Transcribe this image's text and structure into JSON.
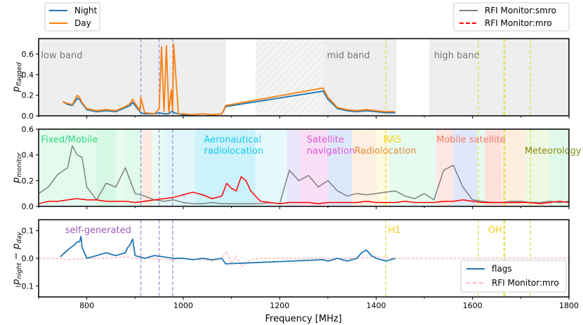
{
  "xlabel": "Frequency [MHz]",
  "xlim": [
    700,
    1800
  ],
  "xticks": [
    800,
    1000,
    1200,
    1400,
    1600,
    1800
  ],
  "vlines_purple": [
    912,
    950,
    978
  ],
  "vlines_yellow": [
    1420,
    1612,
    1665,
    1667,
    1720
  ],
  "colors": {
    "night": "#1f77b4",
    "day": "#ff7f0e",
    "smro": "#808080",
    "mro": "#ff0000",
    "diff_mro": "#ffbcbc",
    "purple": "#b39ddb",
    "yellow": "#e3e06a"
  },
  "legend_top_left": [
    {
      "label": "Night",
      "color": "#1f77b4",
      "style": "solid"
    },
    {
      "label": "Day",
      "color": "#ff7f0e",
      "style": "solid"
    }
  ],
  "legend_top_right": [
    {
      "label": "RFI Monitor:smro",
      "color": "#808080",
      "style": "solid"
    },
    {
      "label": "RFI Monitor:mro",
      "color": "#ff0000",
      "style": "dashed"
    }
  ],
  "legend_bottom": [
    {
      "label": "flags",
      "color": "#1f77b4",
      "style": "solid"
    },
    {
      "label": "RFI Monitor:mro",
      "color": "#ffbcbc",
      "style": "dashed"
    }
  ],
  "panel1": {
    "ylabel_main": "p",
    "ylabel_sub": "flagged",
    "ylim": [
      0,
      0.75
    ],
    "yticks": [
      "0.6",
      "0.4",
      "0.2",
      "0.0"
    ],
    "band_labels": [
      {
        "text": "low band",
        "x": 705
      },
      {
        "text": "mid band",
        "x": 1298
      },
      {
        "text": "high band",
        "x": 1520
      }
    ]
  },
  "panel2": {
    "ylabel_main": "p",
    "ylabel_sub": "monitor",
    "ylim": [
      0,
      0.6
    ],
    "yticks": [
      "0.6",
      "0.4",
      "0.2",
      "0.0"
    ],
    "allocation_labels": [
      {
        "text": "Fixed/Mobile",
        "x": 705,
        "line": 0,
        "color": "#2fd97a"
      },
      {
        "text": "Aeronautical",
        "x": 1043,
        "line": 0,
        "color": "#18c8ee"
      },
      {
        "text": "radiolocation",
        "x": 1043,
        "line": 1,
        "color": "#18c8ee"
      },
      {
        "text": "Satellite",
        "x": 1256,
        "line": 0,
        "color": "#e055d6"
      },
      {
        "text": "navigation",
        "x": 1256,
        "line": 1,
        "color": "#e055d6"
      },
      {
        "text": "RAS",
        "x": 1415,
        "line": 0,
        "color": "#ffd21a"
      },
      {
        "text": "Radiolocation",
        "x": 1355,
        "line": 1,
        "color": "#e58a3a"
      },
      {
        "text": "Mobile satellite",
        "x": 1525,
        "line": 0,
        "color": "#f4776a"
      },
      {
        "text": "Meteorology",
        "x": 1708,
        "line": 1,
        "color": "#8a8a10"
      }
    ]
  },
  "panel3": {
    "ylabel_main": "p",
    "ylabel_sub": "night",
    "ylabel_rest": "− p",
    "ylabel_sub2": "day",
    "ylim": [
      -0.14,
      0.14
    ],
    "yticks": [
      "0.1",
      "0.0",
      "−0.1"
    ],
    "annotations": [
      {
        "text": "self-generated",
        "x": 755,
        "color": "#9b59b6"
      },
      {
        "text": "H1",
        "x": 1425,
        "color": "#f0cf1a"
      },
      {
        "text": "OH",
        "x": 1632,
        "color": "#f0cf1a"
      }
    ]
  },
  "chart_data": {
    "type": "line",
    "xlabel": "Frequency [MHz]",
    "xlim": [
      700,
      1800
    ],
    "panels": [
      {
        "ylabel": "p_flagged",
        "ylim": [
          0,
          0.75
        ],
        "series": [
          {
            "name": "Night",
            "x": [
              750,
              760,
              770,
              780,
              785,
              790,
              800,
              820,
              840,
              860,
              880,
              890,
              895,
              900,
              910,
              912,
              920,
              940,
              950,
              960,
              970,
              975,
              978,
              980,
              990,
              1000,
              1020,
              1040,
              1060,
              1080,
              1088,
              1290,
              1300,
              1320,
              1340,
              1360,
              1380,
              1400,
              1420,
              1440
            ],
            "y": [
              0.14,
              0.11,
              0.1,
              0.17,
              0.16,
              0.12,
              0.06,
              0.04,
              0.05,
              0.04,
              0.08,
              0.1,
              0.13,
              0.1,
              0.04,
              0.03,
              0.02,
              0.02,
              0.03,
              0.02,
              0.02,
              0.04,
              0.05,
              0.03,
              0.02,
              0.01,
              0.01,
              0.02,
              0.01,
              0.02,
              0.09,
              0.24,
              0.16,
              0.07,
              0.05,
              0.04,
              0.05,
              0.04,
              0.03,
              0.03
            ]
          },
          {
            "name": "Day",
            "x": [
              750,
              760,
              770,
              780,
              785,
              790,
              800,
              820,
              840,
              860,
              880,
              890,
              895,
              900,
              910,
              912,
              920,
              940,
              950,
              955,
              960,
              965,
              970,
              975,
              978,
              980,
              990,
              1000,
              1020,
              1040,
              1060,
              1080,
              1088,
              1290,
              1300,
              1320,
              1340,
              1360,
              1380,
              1400,
              1420,
              1440
            ],
            "y": [
              0.14,
              0.12,
              0.11,
              0.2,
              0.18,
              0.13,
              0.07,
              0.05,
              0.06,
              0.05,
              0.09,
              0.12,
              0.16,
              0.12,
              0.05,
              0.18,
              0.03,
              0.02,
              0.07,
              0.67,
              0.04,
              0.68,
              0.03,
              0.25,
              0.05,
              0.7,
              0.02,
              0.02,
              0.01,
              0.02,
              0.01,
              0.02,
              0.1,
              0.27,
              0.18,
              0.08,
              0.06,
              0.05,
              0.06,
              0.05,
              0.04,
              0.04
            ]
          }
        ]
      },
      {
        "ylabel": "p_monitor",
        "ylim": [
          0,
          0.6
        ],
        "series": [
          {
            "name": "RFI Monitor:smro",
            "x": [
              700,
              720,
              740,
              760,
              770,
              780,
              790,
              800,
              820,
              840,
              860,
              880,
              900,
              920,
              940,
              960,
              980,
              1000,
              1020,
              1040,
              1060,
              1080,
              1100,
              1120,
              1140,
              1160,
              1180,
              1200,
              1220,
              1240,
              1260,
              1280,
              1300,
              1320,
              1340,
              1360,
              1380,
              1400,
              1420,
              1440,
              1460,
              1480,
              1500,
              1520,
              1540,
              1560,
              1580,
              1600,
              1620,
              1640,
              1660,
              1680,
              1700,
              1720,
              1740,
              1760,
              1780,
              1800
            ],
            "y": [
              0.1,
              0.15,
              0.25,
              0.3,
              0.47,
              0.4,
              0.38,
              0.15,
              0.05,
              0.18,
              0.15,
              0.3,
              0.1,
              0.08,
              0.05,
              0.04,
              0.05,
              0.03,
              0.02,
              0.02,
              0.03,
              0.02,
              0.02,
              0.02,
              0.02,
              0.02,
              0.03,
              0.02,
              0.28,
              0.2,
              0.24,
              0.15,
              0.2,
              0.12,
              0.08,
              0.1,
              0.09,
              0.1,
              0.11,
              0.12,
              0.08,
              0.06,
              0.1,
              0.05,
              0.28,
              0.32,
              0.15,
              0.05,
              0.04,
              0.03,
              0.03,
              0.04,
              0.04,
              0.03,
              0.03,
              0.04,
              0.03,
              0.04
            ]
          },
          {
            "name": "RFI Monitor:mro",
            "x": [
              700,
              720,
              740,
              760,
              780,
              800,
              820,
              840,
              860,
              880,
              900,
              920,
              940,
              960,
              980,
              1000,
              1020,
              1040,
              1060,
              1080,
              1090,
              1100,
              1110,
              1120,
              1130,
              1140,
              1160,
              1180,
              1200,
              1220,
              1240,
              1260,
              1280,
              1300,
              1320,
              1340,
              1360,
              1380,
              1400,
              1420,
              1440,
              1460,
              1480,
              1500,
              1520,
              1540,
              1560,
              1580,
              1600,
              1620,
              1640,
              1660,
              1680,
              1700,
              1720,
              1740,
              1760,
              1780,
              1800
            ],
            "y": [
              0.02,
              0.04,
              0.04,
              0.05,
              0.06,
              0.05,
              0.05,
              0.04,
              0.04,
              0.04,
              0.03,
              0.04,
              0.05,
              0.06,
              0.07,
              0.09,
              0.11,
              0.09,
              0.06,
              0.08,
              0.18,
              0.14,
              0.12,
              0.23,
              0.2,
              0.12,
              0.04,
              0.03,
              0.02,
              0.03,
              0.03,
              0.03,
              0.02,
              0.03,
              0.03,
              0.03,
              0.03,
              0.04,
              0.03,
              0.03,
              0.03,
              0.04,
              0.03,
              0.03,
              0.03,
              0.04,
              0.04,
              0.05,
              0.04,
              0.03,
              0.03,
              0.03,
              0.03,
              0.03,
              0.03,
              0.02,
              0.03,
              0.04,
              0.03
            ]
          }
        ]
      },
      {
        "ylabel": "p_night - p_day",
        "ylim": [
          -0.14,
          0.14
        ],
        "series": [
          {
            "name": "flags",
            "x": [
              745,
              760,
              775,
              780,
              785,
              788,
              790,
              800,
              820,
              840,
              860,
              880,
              885,
              890,
              895,
              900,
              920,
              940,
              960,
              980,
              1000,
              1020,
              1040,
              1060,
              1080,
              1088,
              1290,
              1300,
              1320,
              1340,
              1360,
              1370,
              1380,
              1390,
              1400,
              1420,
              1440
            ],
            "y": [
              0.005,
              0.03,
              0.05,
              0.06,
              0.06,
              0.08,
              0.04,
              0.0,
              0.01,
              0.02,
              0.01,
              0.02,
              0.04,
              0.05,
              0.07,
              0.01,
              0.0,
              0.01,
              0.005,
              0.0,
              0.0,
              -0.005,
              0.0,
              -0.005,
              0.0,
              -0.02,
              -0.005,
              -0.01,
              0.0,
              -0.01,
              0.0,
              0.02,
              0.03,
              0.01,
              0.0,
              -0.01,
              0.0
            ]
          },
          {
            "name": "RFI Monitor:mro",
            "x": [
              700,
              740,
              760,
              800,
              840,
              880,
              900,
              940,
              980,
              1000,
              1040,
              1060,
              1080,
              1090,
              1100,
              1110,
              1120,
              1130,
              1140,
              1160,
              1200,
              1240,
              1280,
              1320,
              1360,
              1400,
              1440,
              1480,
              1520,
              1560,
              1600,
              1640,
              1680,
              1720,
              1760,
              1800
            ],
            "y": [
              0.0,
              0.0,
              -0.005,
              0.0,
              0.0,
              0.005,
              0.0,
              0.0,
              -0.005,
              0.0,
              -0.005,
              -0.01,
              0.0,
              0.025,
              -0.02,
              0.01,
              -0.03,
              -0.02,
              -0.005,
              0.0,
              0.0,
              0.0,
              0.0,
              0.0,
              0.0,
              0.005,
              0.0,
              0.0,
              0.0,
              0.0,
              0.0,
              0.0,
              0.0,
              0.0,
              0.0,
              0.0
            ]
          }
        ]
      }
    ]
  }
}
